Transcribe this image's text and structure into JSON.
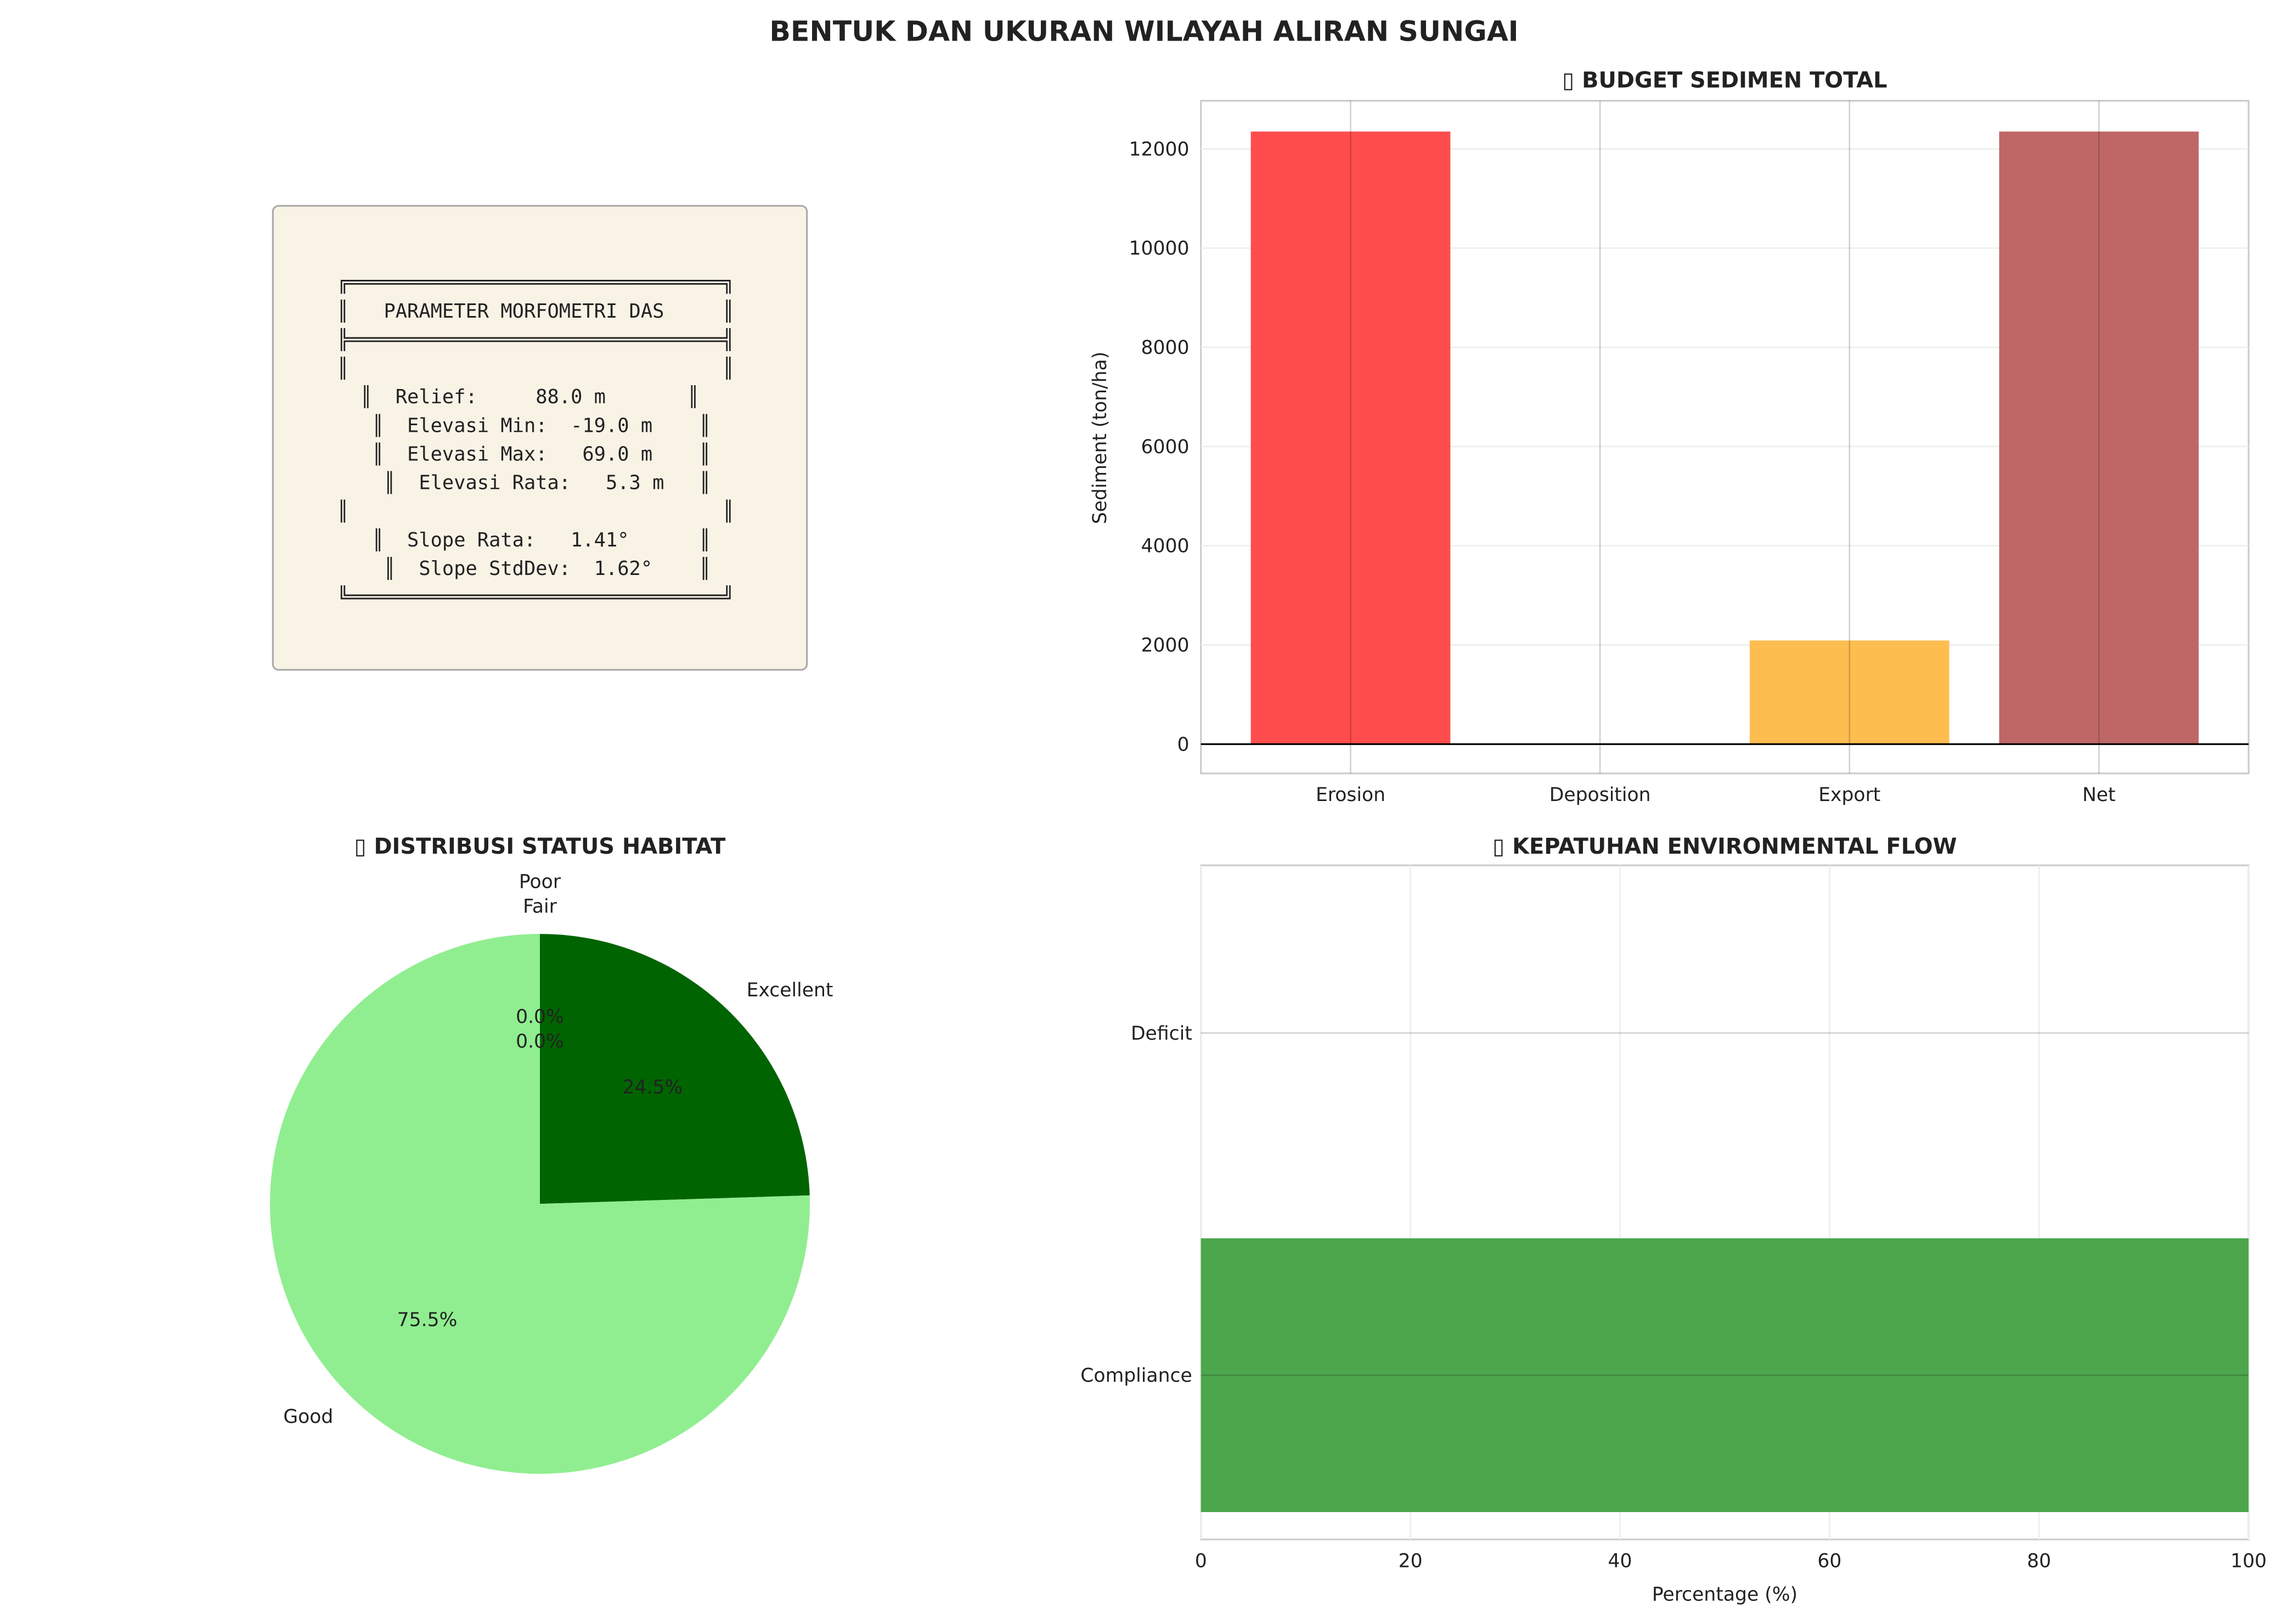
{
  "figure_title": "BENTUK DAN UKURAN WILAYAH ALIRAN SUNGAI",
  "info_box": {
    "lines": [
      "╔════════════════════════════════╗",
      "║   PARAMETER MORFOMETRI DAS     ║",
      "╠════════════════════════════════╣",
      "║                                ║",
      "  ║  Relief:     88.0 m       ║",
      "   ║  Elevasi Min:  -19.0 m    ║",
      "   ║  Elevasi Max:   69.0 m    ║",
      "    ║  Elevasi Rata:   5.3 m   ║",
      "║                                ║",
      "   ║  Slope Rata:   1.41°      ║",
      "    ║  Slope StdDev:  1.62°    ║",
      "╚════════════════════════════════╝"
    ],
    "background": "#f9f3e6"
  },
  "chart_data": [
    {
      "type": "bar",
      "title": "▯ BUDGET SEDIMEN TOTAL",
      "xlabel": "",
      "ylabel": "Sediment (ton/ha)",
      "categories": [
        "Erosion",
        "Deposition",
        "Export",
        "Net"
      ],
      "values": [
        12350,
        0,
        2090,
        12350
      ],
      "colors": [
        "#ff4d4d",
        "#4d8fcc",
        "#fdbd4f",
        "#bf6766"
      ],
      "ylim": [
        -590,
        12970
      ],
      "yticks": [
        0,
        2000,
        4000,
        6000,
        8000,
        10000,
        12000
      ],
      "grid": true
    },
    {
      "type": "pie",
      "title": "▯ DISTRIBUSI STATUS HABITAT",
      "labels": [
        "Excellent",
        "Good",
        "Fair",
        "Poor"
      ],
      "values": [
        24.5,
        75.5,
        0.0,
        0.0
      ],
      "pct_labels": [
        "24.5%",
        "75.5%",
        "0.0%",
        "0.0%"
      ],
      "colors": [
        "#006400",
        "#90ee90",
        "#ffa500",
        "#ff4500"
      ]
    },
    {
      "type": "bar",
      "orientation": "horizontal",
      "title": "▯ KEPATUHAN ENVIRONMENTAL FLOW",
      "xlabel": "Percentage (%)",
      "ylabel": "",
      "categories": [
        "Compliance",
        "Deficit"
      ],
      "values": [
        100,
        0
      ],
      "colors": [
        "#4ca64c",
        "#ff4d4d"
      ],
      "xlim": [
        0,
        100
      ],
      "xticks": [
        0,
        20,
        40,
        60,
        80,
        100
      ],
      "ylim": [
        -0.48,
        1.49
      ],
      "grid": true
    }
  ]
}
